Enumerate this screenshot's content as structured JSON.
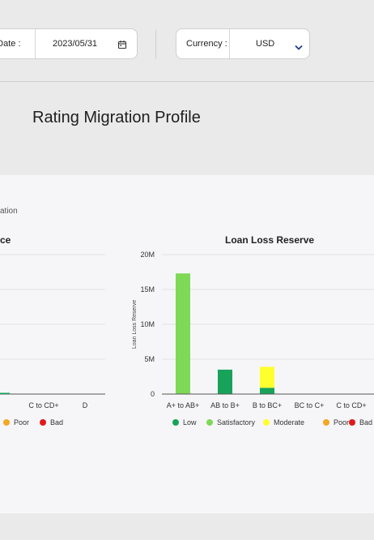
{
  "filters": {
    "date_label": "n Date :",
    "date_value": "2023/05/31",
    "currency_label": "Currency :",
    "currency_value": "USD"
  },
  "page_title": "Rating Migration Profile",
  "subtitle": "ation",
  "left_chart": {
    "title": "ce",
    "tick_labels": [
      "C to C+",
      "C to CD+",
      "D"
    ],
    "legend": [
      {
        "label": "Poor",
        "color": "#f5a623"
      },
      {
        "label": "Bad",
        "color": "#e0191b"
      }
    ]
  },
  "chart_data": {
    "type": "bar",
    "title": "Loan Loss Reserve",
    "ylabel": "Loan Loss Reserve",
    "xlabel": "",
    "ylim": [
      0,
      20000000
    ],
    "yticks": [
      {
        "value": 0,
        "label": "0"
      },
      {
        "value": 5000000,
        "label": "5M"
      },
      {
        "value": 10000000,
        "label": "10M"
      },
      {
        "value": 15000000,
        "label": "15M"
      },
      {
        "value": 20000000,
        "label": "20M"
      }
    ],
    "stacked": true,
    "grid": true,
    "legend_position": "bottom",
    "categories": [
      "A+ to AB+",
      "AB to B+",
      "B to BC+",
      "BC to C+",
      "C to CD+"
    ],
    "series": [
      {
        "name": "Low",
        "color": "#17a35a",
        "values": [
          0,
          3500000,
          900000,
          0,
          0
        ]
      },
      {
        "name": "Satisfactory",
        "color": "#7ed957",
        "values": [
          17300000,
          0,
          0,
          0,
          0
        ]
      },
      {
        "name": "Moderate",
        "color": "#ffff2e",
        "values": [
          0,
          0,
          3000000,
          0,
          0
        ]
      },
      {
        "name": "Poor",
        "color": "#f5a623",
        "values": [
          0,
          0,
          0,
          0,
          0
        ]
      },
      {
        "name": "Bad",
        "color": "#e0191b",
        "values": [
          0,
          0,
          0,
          0,
          0
        ]
      }
    ]
  }
}
